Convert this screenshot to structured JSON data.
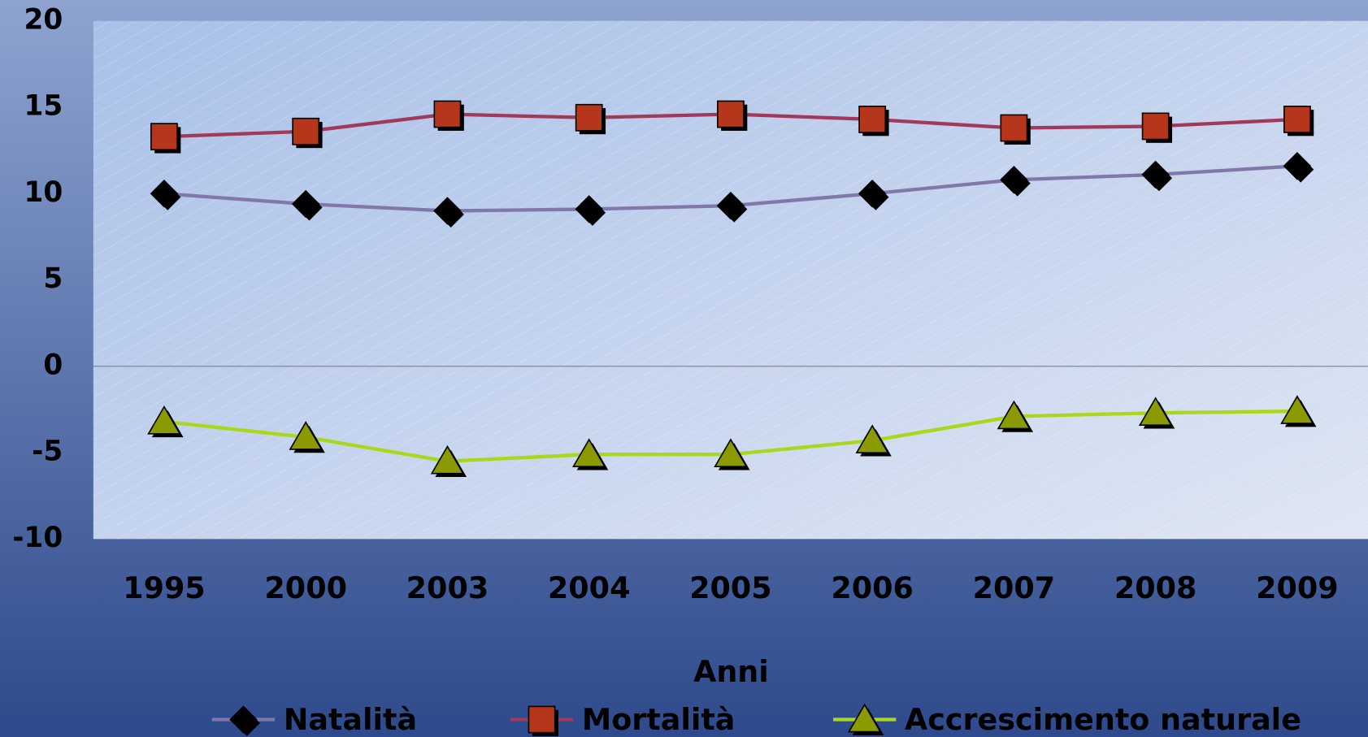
{
  "chart_data": {
    "type": "line",
    "x_label": "Anni",
    "categories": [
      "1995",
      "2000",
      "2003",
      "2004",
      "2005",
      "2006",
      "2007",
      "2008",
      "2009"
    ],
    "series": [
      {
        "name": "Natalità",
        "color": "#8078a8",
        "marker": "diamond",
        "marker_color": "#000000",
        "values": [
          10.0,
          9.4,
          9.0,
          9.1,
          9.3,
          10.0,
          10.8,
          11.1,
          11.6
        ]
      },
      {
        "name": "Mortalità",
        "color": "#a0395a",
        "marker": "square",
        "marker_color": "#b5361a",
        "values": [
          13.3,
          13.6,
          14.6,
          14.4,
          14.6,
          14.3,
          13.8,
          13.9,
          14.3
        ]
      },
      {
        "name": "Accrescimento naturale",
        "color": "#a8d81a",
        "marker": "triangle",
        "marker_color": "#8a9a00",
        "values": [
          -3.2,
          -4.1,
          -5.5,
          -5.1,
          -5.1,
          -4.3,
          -2.9,
          -2.7,
          -2.6
        ]
      }
    ],
    "ylim": [
      -10,
      20
    ],
    "yticks": [
      -10,
      -5,
      0,
      5,
      10,
      15,
      20
    ],
    "legend": "bottom"
  }
}
